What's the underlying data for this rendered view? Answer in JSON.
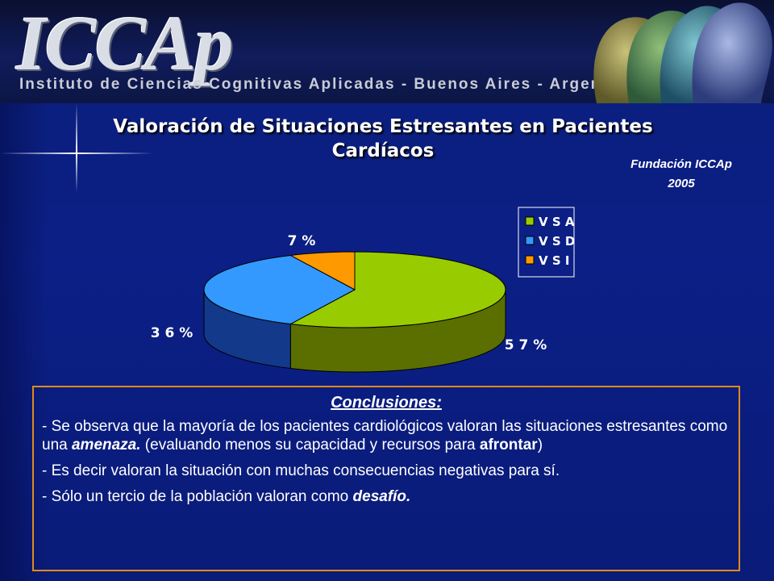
{
  "header": {
    "logo": "ICCAp",
    "subtitle": "Instituto de Ciencias Cognitivas Aplicadas  -  Buenos Aires  -  Argentina"
  },
  "slide": {
    "title": "Valoración de Situaciones Estresantes en Pacientes Cardíacos",
    "org_line1": "Fundación ICCAp",
    "org_line2": "2005"
  },
  "chart_data": {
    "type": "pie",
    "title": "",
    "categories": [
      "V S A",
      "V S D",
      "V S I"
    ],
    "values": [
      57,
      36,
      7
    ],
    "value_labels": [
      "5 7 %",
      "3 6 %",
      "7 %"
    ],
    "colors": [
      "#99cc00",
      "#3399ff",
      "#ff9900"
    ],
    "side_colors": [
      "#5a6f00",
      "#12398a",
      "#a85c00"
    ],
    "legend": "top-right",
    "three_d": true
  },
  "conclusions": {
    "heading": "Conclusiones:",
    "p1_a": "- Se observa que la mayoría de los pacientes cardiológicos valoran las situaciones estresantes como una ",
    "p1_em": "amenaza.",
    "p1_b": " (evaluando menos su capacidad y recursos para ",
    "p1_strong": "afrontar",
    "p1_c": ")",
    "p2": "- Es decir valoran la situación con muchas consecuencias negativas para sí.",
    "p3_a": "- Sólo un tercio de la población valoran como ",
    "p3_em": "desafío."
  }
}
